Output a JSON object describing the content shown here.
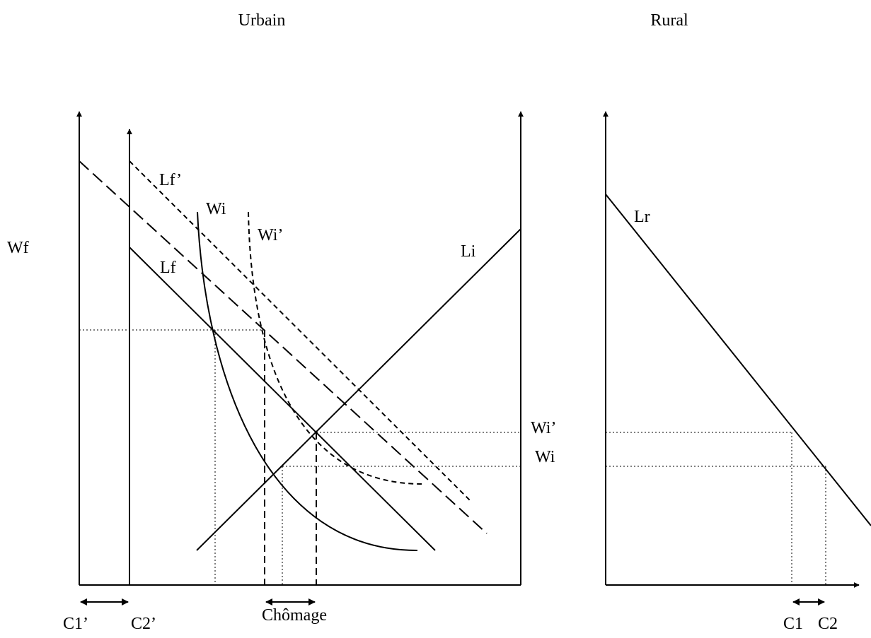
{
  "titles": {
    "urbain": "Urbain",
    "rural": "Rural"
  },
  "labels": {
    "wf": "Wf",
    "lf_prime": "Lf’",
    "lf": "Lf",
    "wi": "Wi",
    "wi_prime": "Wi’",
    "li": "Li",
    "lr": "Lr",
    "wi_prime_right": "Wi’",
    "wi_right": "Wi",
    "c1_prime": "C1’",
    "c2_prime": "C2’",
    "chomage": "Chômage",
    "c1": "C1",
    "c2": "C2"
  }
}
